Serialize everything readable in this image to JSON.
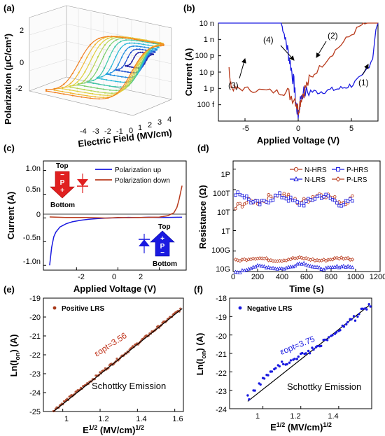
{
  "panels": {
    "a": {
      "letter": "(a)",
      "ylabel": "Polarization (μC/cm²)",
      "xlabel": "Electric Field (MV/cm)",
      "yticks": [
        "2",
        "0",
        "-2"
      ],
      "xticks": [
        "-4",
        "-3",
        "-2",
        "-1",
        "0",
        "1",
        "2",
        "3",
        "4"
      ]
    },
    "b": {
      "letter": "(b)",
      "ylabel": "Current (A)",
      "xlabel": "Applied Voltage (V)",
      "yticks": [
        "10 n",
        "1 n",
        "100 p",
        "10 p",
        "1 p",
        "100 f"
      ],
      "xticks": [
        "-5",
        "0",
        "5"
      ],
      "arrows": [
        "(1)",
        "(2)",
        "(3)",
        "(4)"
      ]
    },
    "c": {
      "letter": "(c)",
      "ylabel": "Current (A)",
      "xlabel": "Applied Voltage (V)",
      "yticks": [
        "1.0n",
        "0.5n",
        "0",
        "-0.5n",
        "-1.0n"
      ],
      "xticks": [
        "-2",
        "0",
        "2"
      ],
      "legend": [
        "Polarization up",
        "Polarization down"
      ],
      "inset_left": {
        "top": "Top",
        "bottom": "Bottom",
        "sign_top": "−",
        "letter": "P",
        "sign_bottom": "+"
      },
      "inset_right": {
        "top": "Top",
        "bottom": "Bottom",
        "sign_top": "+",
        "letter": "P",
        "sign_bottom": "−"
      }
    },
    "d": {
      "letter": "(d)",
      "ylabel": "Resistance (Ω)",
      "xlabel": "Time (s)",
      "yticks": [
        "1P",
        "100T",
        "10T",
        "1T",
        "100G",
        "10G"
      ],
      "xticks": [
        "0",
        "200",
        "400",
        "600",
        "800",
        "1000",
        "1200"
      ],
      "legend": [
        "N-HRS",
        "P-HRS",
        "N-LRS",
        "P-LRS"
      ]
    },
    "e": {
      "letter": "(e)",
      "ylabel": "Ln(I",
      "ylabel_sub": "on",
      "ylabel_end": ") (A)",
      "xlabel": "E",
      "xlabel_sup": "1/2",
      "xlabel_end": " (MV/cm)",
      "xlabel_sup2": "1/2",
      "yticks": [
        "-19",
        "-20",
        "-21",
        "-22",
        "-23",
        "-24",
        "-25"
      ],
      "xticks": [
        "1",
        "1.2",
        "1.4",
        "1.6"
      ],
      "legend": "Positive LRS",
      "fit_text": "εopt=3.56",
      "emission": "Schottky Emission"
    },
    "f": {
      "letter": "(f)",
      "ylabel": "Ln(I",
      "ylabel_sub": "on",
      "ylabel_end": ") (A)",
      "xlabel": "E",
      "xlabel_sup": "1/2",
      "xlabel_end": " (MV/cm)",
      "xlabel_sup2": "1/2",
      "yticks": [
        "-18",
        "-19",
        "-20",
        "-21",
        "-22",
        "-23",
        "-24"
      ],
      "xticks": [
        "1",
        "1.2",
        "1.4"
      ],
      "legend": "Negative LRS",
      "fit_text": "εopt=3.75",
      "emission": "Schottky Emission"
    }
  },
  "chart_data": [
    {
      "panel": "a",
      "type": "line",
      "series_count": 10,
      "x_range": [
        -4,
        4
      ],
      "y_range": [
        -2.5,
        2.5
      ],
      "loops": [
        {
          "emax": 1.0,
          "pmax": 0.6
        },
        {
          "emax": 1.4,
          "pmax": 0.9
        },
        {
          "emax": 1.8,
          "pmax": 1.2
        },
        {
          "emax": 2.2,
          "pmax": 1.5
        },
        {
          "emax": 2.6,
          "pmax": 1.8
        },
        {
          "emax": 3.0,
          "pmax": 2.0
        },
        {
          "emax": 3.3,
          "pmax": 2.15
        },
        {
          "emax": 3.6,
          "pmax": 2.25
        },
        {
          "emax": 3.9,
          "pmax": 2.35
        },
        {
          "emax": 4.2,
          "pmax": 2.4
        }
      ],
      "colors": [
        "#1a1aa0",
        "#1f4fd0",
        "#1f8ce0",
        "#29b8d8",
        "#3cc8a8",
        "#7ccf70",
        "#b8d450",
        "#e0d040",
        "#f0b830",
        "#f08020"
      ]
    },
    {
      "panel": "b",
      "type": "line",
      "y_scale": "log",
      "xlim": [
        -7.5,
        7.5
      ],
      "ylim_exp": [
        -14,
        -8
      ],
      "series": [
        {
          "name": "",
          "color": "#1a1ae0",
          "x": [
            -7.5,
            -1.6,
            -1.3,
            -1.0,
            -0.7,
            -0.4,
            -0.2,
            0.0,
            0.3,
            1.0,
            2.0,
            3.0,
            4.0,
            5.0,
            6.0,
            7.0,
            7.3,
            7.5
          ],
          "y_exp": [
            -8,
            -8,
            -8.7,
            -9.6,
            -10.6,
            -11.7,
            -13.0,
            -13.6,
            -12.3,
            -12.2,
            -12.2,
            -12.1,
            -12.0,
            -11.8,
            -11.3,
            -10.2,
            -8.4,
            -8.0
          ]
        },
        {
          "name": "",
          "color": "#b83a1c",
          "x": [
            -6.5,
            -6.4,
            -6.2,
            -5.5,
            -4.0,
            -2.0,
            -1.0,
            -0.3,
            0.0,
            0.3,
            0.8,
            1.5,
            3.0,
            4.5,
            6.0,
            6.5,
            7.5
          ],
          "y_exp": [
            -10.7,
            -11.6,
            -12.0,
            -12.0,
            -12.1,
            -12.2,
            -12.3,
            -12.6,
            -13.3,
            -12.5,
            -11.8,
            -11.1,
            -10.0,
            -9.0,
            -8.1,
            -8.0,
            -8.0
          ]
        }
      ]
    },
    {
      "panel": "c",
      "type": "line",
      "xlim": [
        -3.6,
        3.3
      ],
      "ylim": [
        -1.1e-09,
        1.2e-09
      ],
      "series": [
        {
          "name": "Polarization up",
          "color": "#1a1ae0",
          "x": [
            -3.3,
            -3.2,
            -3.1,
            -3.0,
            -2.8,
            -2.5,
            -2.2,
            -1.8,
            -1.4,
            -1.0,
            -0.5,
            0.0,
            0.5,
            1.0,
            1.5,
            2.0,
            2.5,
            3.0,
            3.1
          ],
          "y": [
            -1e-09,
            -6.2e-10,
            -4e-10,
            -3e-10,
            -2e-10,
            -1.3e-10,
            -8e-11,
            -5e-11,
            -3e-11,
            -2e-11,
            -1e-11,
            0,
            2e-12,
            5e-12,
            8e-12,
            1e-11,
            1.2e-11,
            1.5e-11,
            1.5e-11
          ]
        },
        {
          "name": "Polarization down",
          "color": "#b83a1c",
          "x": [
            -3.3,
            -2.5,
            -1.5,
            -0.5,
            0.0,
            0.5,
            1.5,
            2.0,
            2.4,
            2.7,
            2.85,
            2.95,
            3.05,
            3.1
          ],
          "y": [
            2e-11,
            1e-11,
            8e-12,
            5e-12,
            0.0,
            5e-12,
            1e-11,
            2e-11,
            4e-11,
            1e-10,
            2.2e-10,
            3.8e-10,
            5.8e-10,
            6.8e-10
          ]
        }
      ]
    },
    {
      "panel": "d",
      "type": "line",
      "y_scale": "log",
      "xlim": [
        0,
        1200
      ],
      "ylim_exp": [
        10,
        15.4
      ],
      "series": [
        {
          "name": "N-HRS",
          "color": "#b83a1c",
          "marker": "circle",
          "base_exp": 13.6,
          "start_exp": 12.9
        },
        {
          "name": "P-HRS",
          "color": "#1a1ae0",
          "marker": "square",
          "base_exp": 13.5,
          "start_exp": 13.7
        },
        {
          "name": "N-LRS",
          "color": "#1a1ae0",
          "marker": "triangle",
          "base_exp": 10.2,
          "start_exp": 10.0
        },
        {
          "name": "P-LRS",
          "color": "#b83a1c",
          "marker": "diamond",
          "base_exp": 10.6,
          "start_exp": 10.6
        }
      ]
    },
    {
      "panel": "e",
      "type": "scatter",
      "xlim": [
        0.9,
        1.65
      ],
      "ylim": [
        -25,
        -19
      ],
      "series": [
        {
          "name": "Positive LRS",
          "color": "#a83818",
          "x_start": 0.95,
          "x_end": 1.63,
          "y_start": -24.95,
          "y_end": -19.6
        }
      ],
      "fit": {
        "x": [
          0.95,
          1.64
        ],
        "y": [
          -25.0,
          -19.55
        ]
      }
    },
    {
      "panel": "f",
      "type": "scatter",
      "xlim": [
        0.85,
        1.6
      ],
      "ylim": [
        -24,
        -18
      ],
      "series": [
        {
          "name": "Negative LRS",
          "color": "#1a1ae0",
          "x": [
            0.92,
            0.95,
            0.98,
            1.0,
            1.02,
            1.04,
            1.06,
            1.08,
            1.1,
            1.12,
            1.14,
            1.16,
            1.18,
            1.2,
            1.22,
            1.24,
            1.26,
            1.28,
            1.3,
            1.32,
            1.34,
            1.36,
            1.38,
            1.4,
            1.42,
            1.44,
            1.46,
            1.48,
            1.5,
            1.52,
            1.54,
            1.56
          ],
          "y": [
            -23.4,
            -23.0,
            -22.6,
            -22.3,
            -22.1,
            -21.9,
            -21.8,
            -21.6,
            -21.5,
            -21.5,
            -21.4,
            -21.3,
            -21.2,
            -21.1,
            -21.0,
            -20.9,
            -20.8,
            -20.6,
            -20.5,
            -20.3,
            -20.2,
            -20.1,
            -19.9,
            -19.8,
            -19.6,
            -19.4,
            -19.2,
            -19.1,
            -18.9,
            -18.7,
            -18.5,
            -18.4
          ]
        }
      ],
      "fit": {
        "x": [
          0.92,
          1.56
        ],
        "y": [
          -23.6,
          -18.4
        ]
      }
    }
  ]
}
